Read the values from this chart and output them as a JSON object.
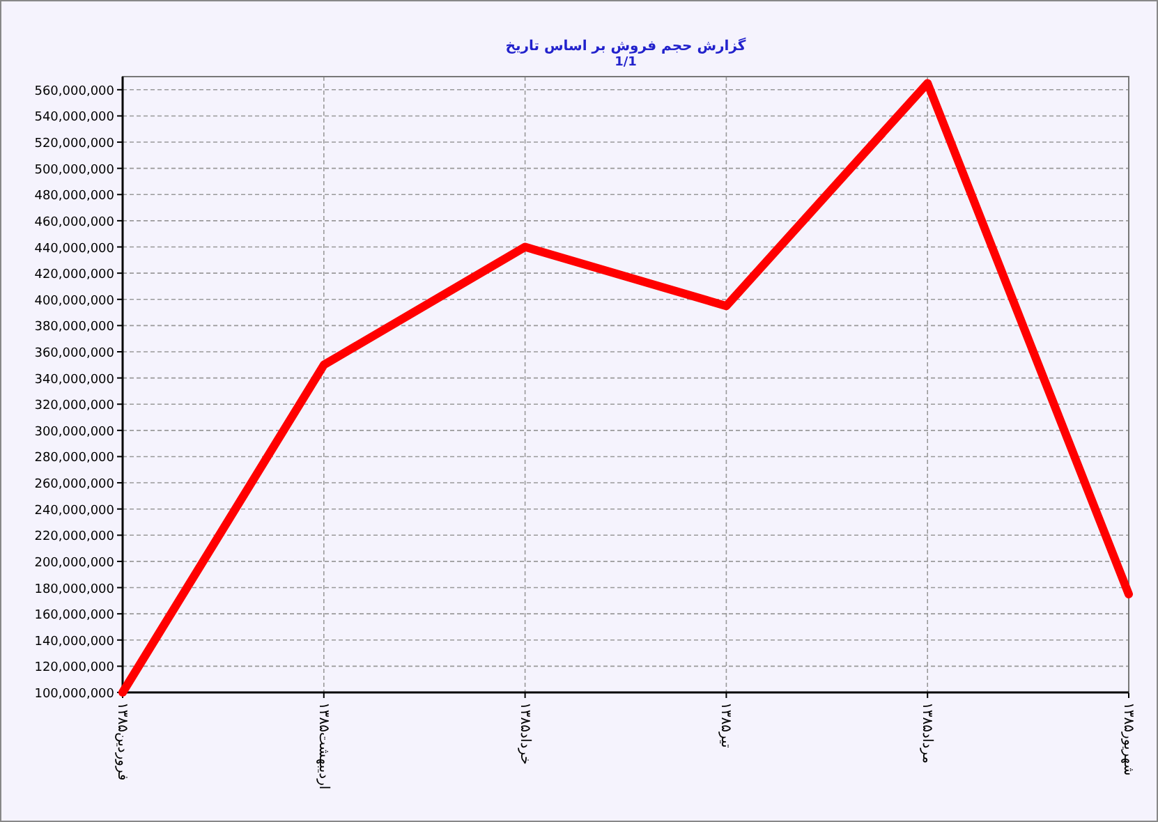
{
  "chart_data": {
    "type": "line",
    "title": "گزارش حجم فروش بر اساس تاریخ",
    "subtitle": "1/1",
    "categories": [
      "فروردین۱۳۸۵",
      "اردیبهشت۱۳۸۵",
      "خرداد۱۳۸۵",
      "تیر۱۳۸۵",
      "مرداد۱۳۸۵",
      "شهریور۱۳۸۵"
    ],
    "series": [
      {
        "color": "#ff0000",
        "values": [
          100000000,
          350000000,
          440000000,
          395000000,
          565000000,
          175000000
        ]
      }
    ],
    "ylim": [
      100000000,
      570000000
    ],
    "yticks": [
      {
        "value": 100000000,
        "label": "100,000,000"
      },
      {
        "value": 120000000,
        "label": "120,000,000"
      },
      {
        "value": 140000000,
        "label": "140,000,000"
      },
      {
        "value": 160000000,
        "label": "160,000,000"
      },
      {
        "value": 180000000,
        "label": "180,000,000"
      },
      {
        "value": 200000000,
        "label": "200,000,000"
      },
      {
        "value": 220000000,
        "label": "220,000,000"
      },
      {
        "value": 240000000,
        "label": "240,000,000"
      },
      {
        "value": 260000000,
        "label": "260,000,000"
      },
      {
        "value": 280000000,
        "label": "280,000,000"
      },
      {
        "value": 300000000,
        "label": "300,000,000"
      },
      {
        "value": 320000000,
        "label": "320,000,000"
      },
      {
        "value": 340000000,
        "label": "340,000,000"
      },
      {
        "value": 360000000,
        "label": "360,000,000"
      },
      {
        "value": 380000000,
        "label": "380,000,000"
      },
      {
        "value": 400000000,
        "label": "400,000,000"
      },
      {
        "value": 420000000,
        "label": "420,000,000"
      },
      {
        "value": 440000000,
        "label": "440,000,000"
      },
      {
        "value": 460000000,
        "label": "460,000,000"
      },
      {
        "value": 480000000,
        "label": "480,000,000"
      },
      {
        "value": 500000000,
        "label": "500,000,000"
      },
      {
        "value": 520000000,
        "label": "520,000,000"
      },
      {
        "value": 540000000,
        "label": "540,000,000"
      },
      {
        "value": 560000000,
        "label": "560,000,000"
      }
    ],
    "grid": true,
    "marker": "none",
    "line_style": "solid"
  }
}
